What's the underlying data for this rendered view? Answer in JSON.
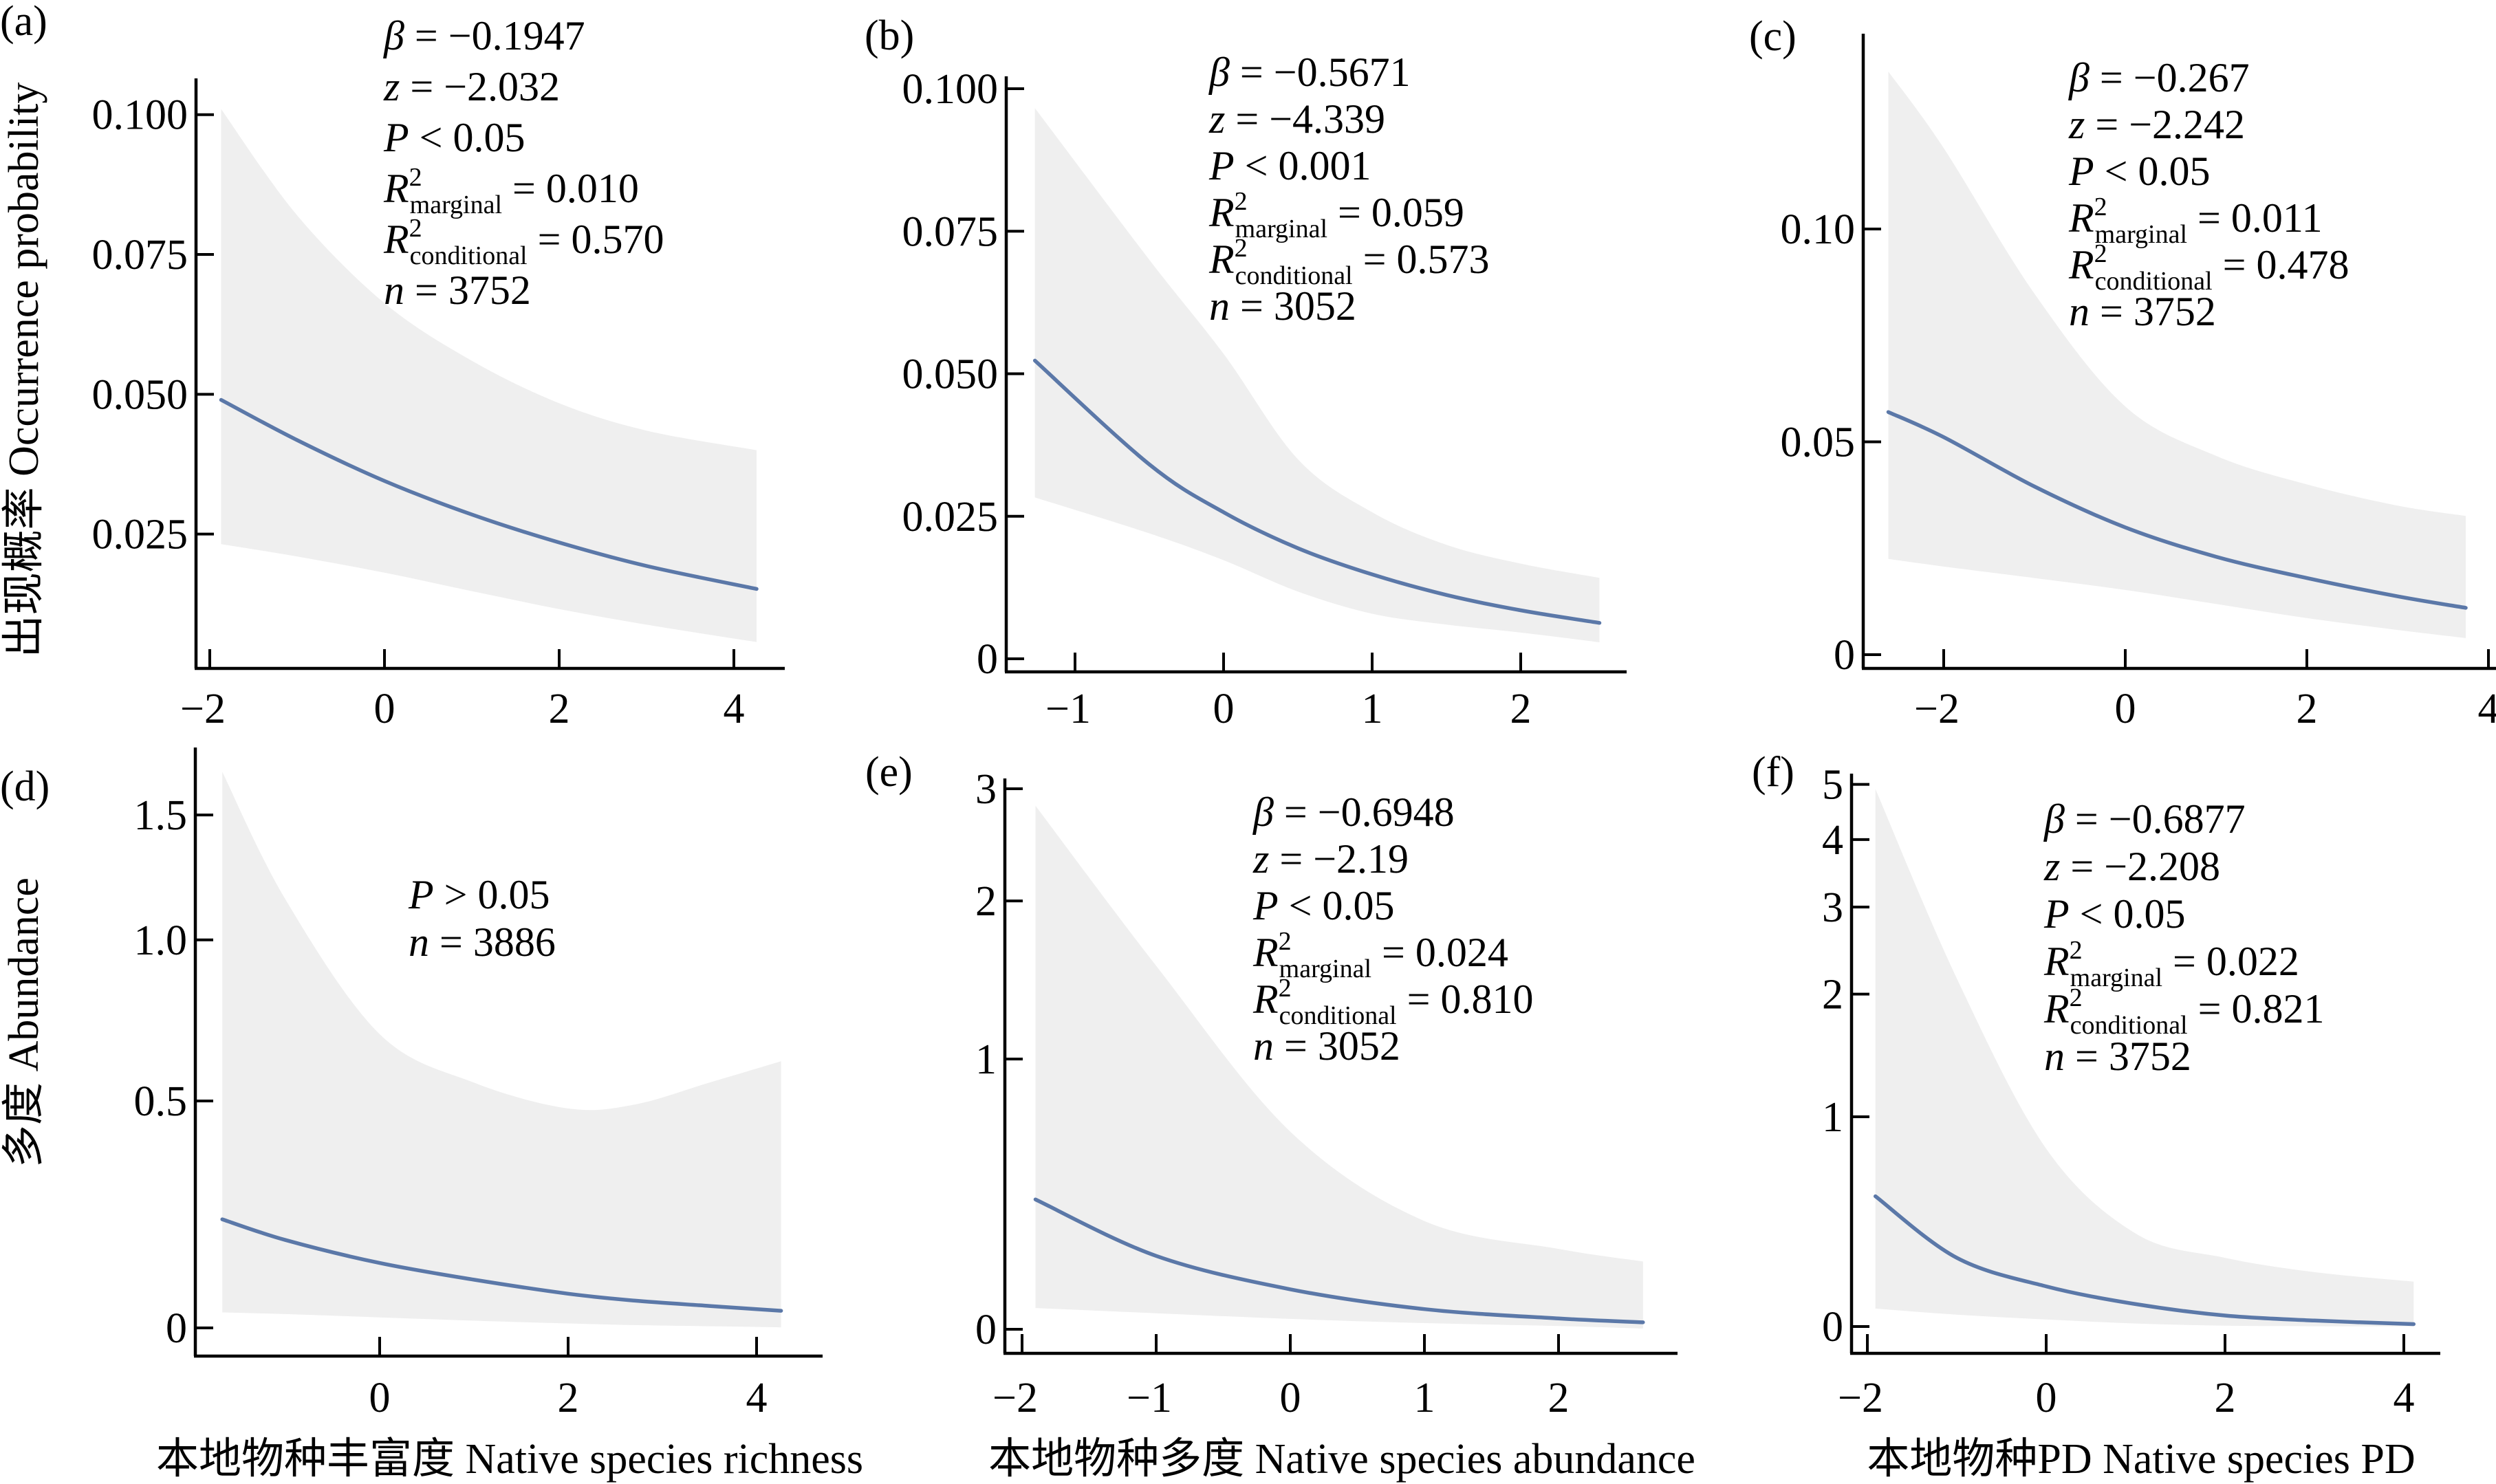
{
  "figure": {
    "colors": {
      "fit_line": "#5b78a8",
      "ci_band": "#efefef",
      "axis": "#000000"
    },
    "row_ylabels": [
      "出现概率 Occurrence probability",
      "多度 Abundance"
    ]
  },
  "chart_data": [
    {
      "id": "a",
      "panel_label": "(a)",
      "type": "line",
      "ylabel": "出现概率 Occurrence probability",
      "xlabel": "",
      "y_scale": "linear",
      "xlim": [
        -2,
        4.5
      ],
      "ylim": [
        0,
        0.105
      ],
      "xticks": [
        -2,
        0,
        2,
        4
      ],
      "xtick_labels": [
        "−2",
        "0",
        "2",
        "4"
      ],
      "yticks": [
        0.025,
        0.05,
        0.075,
        0.1
      ],
      "ytick_labels": [
        "0.025",
        "0.050",
        "0.075",
        "0.100"
      ],
      "stats": [
        {
          "sym": "β",
          "sub": "",
          "sup": "",
          "text": " = −0.1947"
        },
        {
          "sym": "z",
          "sub": "",
          "sup": "",
          "text": " = −2.032"
        },
        {
          "sym": "P",
          "sub": "",
          "sup": "",
          "text": " < 0.05"
        },
        {
          "sym": "R",
          "sup": "2",
          "sub": "marginal",
          "text": " = 0.010"
        },
        {
          "sym": "R",
          "sup": "2",
          "sub": "conditional",
          "text": " = 0.570"
        },
        {
          "sym": "n",
          "sub": "",
          "sup": "",
          "text": " = 3752"
        }
      ],
      "series": [
        {
          "name": "fit",
          "x": [
            -1.87,
            -1.0,
            0.0,
            1.0,
            2.0,
            3.0,
            4.26
          ],
          "fit": [
            0.049,
            0.0418,
            0.0345,
            0.0285,
            0.0235,
            0.0193,
            0.0152
          ],
          "lower": [
            0.0232,
            0.021,
            0.0181,
            0.0148,
            0.0116,
            0.0088,
            0.0057
          ],
          "upper": [
            0.101,
            0.082,
            0.0663,
            0.056,
            0.0484,
            0.0435,
            0.04
          ]
        }
      ]
    },
    {
      "id": "b",
      "panel_label": "(b)",
      "type": "line",
      "ylabel": "",
      "xlabel": "",
      "y_scale": "linear",
      "xlim": [
        -1.4,
        2.7
      ],
      "ylim": [
        0,
        0.1
      ],
      "xticks": [
        -1,
        0,
        1,
        2
      ],
      "xtick_labels": [
        "−1",
        "0",
        "1",
        "2"
      ],
      "yticks": [
        0,
        0.025,
        0.05,
        0.075,
        0.1
      ],
      "ytick_labels": [
        "0",
        "0.025",
        "0.050",
        "0.075",
        "0.100"
      ],
      "stats": [
        {
          "sym": "β",
          "sub": "",
          "sup": "",
          "text": " = −0.5671"
        },
        {
          "sym": "z",
          "sub": "",
          "sup": "",
          "text": " = −4.339"
        },
        {
          "sym": "P",
          "sub": "",
          "sup": "",
          "text": " < 0.001"
        },
        {
          "sym": "R",
          "sup": "2",
          "sub": "marginal",
          "text": " = 0.059"
        },
        {
          "sym": "R",
          "sup": "2",
          "sub": "conditional",
          "text": " = 0.573"
        },
        {
          "sym": "n",
          "sub": "",
          "sup": "",
          "text": " = 3052"
        }
      ],
      "series": [
        {
          "name": "fit",
          "x": [
            -1.27,
            -0.5,
            0.0,
            0.5,
            1.0,
            1.5,
            2.0,
            2.53
          ],
          "fit": [
            0.0523,
            0.0341,
            0.0257,
            0.0194,
            0.0148,
            0.0112,
            0.0085,
            0.0063
          ],
          "lower": [
            0.0283,
            0.022,
            0.0173,
            0.0118,
            0.0079,
            0.006,
            0.0046,
            0.0029
          ],
          "upper": [
            0.0966,
            0.07,
            0.0535,
            0.035,
            0.0257,
            0.02,
            0.0167,
            0.0142
          ]
        }
      ]
    },
    {
      "id": "c",
      "panel_label": "(c)",
      "type": "line",
      "ylabel": "",
      "xlabel": "",
      "y_scale": "linear",
      "xlim": [
        -2.7,
        4.2
      ],
      "ylim": [
        0,
        0.15
      ],
      "xticks": [
        -2,
        0,
        2,
        4
      ],
      "xtick_labels": [
        "−2",
        "0",
        "2",
        "4"
      ],
      "yticks": [
        0,
        0.05,
        0.1
      ],
      "ytick_labels": [
        "0",
        "0.05",
        "0.10"
      ],
      "stats": [
        {
          "sym": "β",
          "sub": "",
          "sup": "",
          "text": " = −0.267"
        },
        {
          "sym": "z",
          "sub": "",
          "sup": "",
          "text": " = −2.242"
        },
        {
          "sym": "P",
          "sub": "",
          "sup": "",
          "text": " < 0.05"
        },
        {
          "sym": "R",
          "sup": "2",
          "sub": "marginal",
          "text": " = 0.011"
        },
        {
          "sym": "R",
          "sup": "2",
          "sub": "conditional",
          "text": " = 0.478"
        },
        {
          "sym": "n",
          "sub": "",
          "sup": "",
          "text": " = 3752"
        }
      ],
      "series": [
        {
          "name": "fit",
          "x": [
            -2.61,
            -2.0,
            -1.0,
            0.0,
            1.0,
            2.0,
            3.0,
            3.75
          ],
          "fit": [
            0.057,
            0.0511,
            0.0395,
            0.0299,
            0.023,
            0.018,
            0.0137,
            0.011
          ],
          "lower": [
            0.0225,
            0.0207,
            0.018,
            0.0152,
            0.0119,
            0.0086,
            0.0058,
            0.0039
          ],
          "upper": [
            0.137,
            0.119,
            0.0848,
            0.0583,
            0.0467,
            0.04,
            0.035,
            0.0326
          ]
        }
      ]
    },
    {
      "id": "d",
      "panel_label": "(d)",
      "type": "line",
      "ylabel": "多度 Abundance",
      "xlabel": "本地物种丰富度 Native species richness",
      "y_scale": "log1p",
      "xlim": [
        -2,
        4.5
      ],
      "ylim": [
        0,
        1.7
      ],
      "xticks": [
        0,
        2,
        4
      ],
      "xtick_labels": [
        "0",
        "2",
        "4"
      ],
      "yticks": [
        0,
        0.5,
        1.0,
        1.5
      ],
      "ytick_labels": [
        "0",
        "0.5",
        "1.0",
        "1.5"
      ],
      "stats": [
        {
          "sym": "P",
          "sub": "",
          "sup": "",
          "text": " > 0.05"
        },
        {
          "sym": "n",
          "sub": "",
          "sup": "",
          "text": " = 3886"
        }
      ],
      "series": [
        {
          "name": "fit",
          "x": [
            -1.67,
            -1.0,
            0.0,
            1.0,
            2.0,
            2.7,
            3.5,
            4.26
          ],
          "fit": [
            0.214,
            0.17,
            0.123,
            0.09,
            0.063,
            0.05,
            0.04,
            0.031
          ],
          "lower": [
            0.028,
            0.025,
            0.019,
            0.013,
            0.008,
            0.005,
            0.003,
            0.001
          ],
          "upper": [
            1.7,
            1.15,
            0.69,
            0.55,
            0.48,
            0.49,
            0.55,
            0.61
          ]
        }
      ]
    },
    {
      "id": "e",
      "panel_label": "(e)",
      "type": "line",
      "ylabel": "",
      "xlabel": "本地物种多度 Native species abundance",
      "y_scale": "log1p",
      "xlim": [
        -2.1,
        2.9
      ],
      "ylim": [
        0,
        3
      ],
      "xticks": [
        -2,
        -1,
        0,
        1,
        2
      ],
      "xtick_labels": [
        "−2",
        "−1",
        "0",
        "1",
        "2"
      ],
      "yticks": [
        0,
        1,
        2,
        3
      ],
      "ytick_labels": [
        "0",
        "1",
        "2",
        "3"
      ],
      "stats": [
        {
          "sym": "β",
          "sub": "",
          "sup": "",
          "text": " = −0.6948"
        },
        {
          "sym": "z",
          "sub": "",
          "sup": "",
          "text": " = −2.19"
        },
        {
          "sym": "P",
          "sub": "",
          "sup": "",
          "text": " < 0.05"
        },
        {
          "sym": "R",
          "sup": "2",
          "sub": "marginal",
          "text": " = 0.024"
        },
        {
          "sym": "R",
          "sup": "2",
          "sub": "conditional",
          "text": " = 0.810"
        },
        {
          "sym": "n",
          "sub": "",
          "sup": "",
          "text": " = 3052"
        }
      ],
      "series": [
        {
          "name": "fit",
          "x": [
            -1.9,
            -1.0,
            0.0,
            1.0,
            2.0,
            2.63
          ],
          "fit": [
            0.395,
            0.207,
            0.108,
            0.053,
            0.028,
            0.018
          ],
          "lower": [
            0.056,
            0.042,
            0.027,
            0.016,
            0.0085,
            0.002
          ],
          "upper": [
            2.83,
            1.54,
            0.66,
            0.32,
            0.229,
            0.19
          ]
        }
      ]
    },
    {
      "id": "f",
      "panel_label": "(f)",
      "type": "line",
      "ylabel": "",
      "xlabel": "本地物种PD Native species PD",
      "y_scale": "log1p",
      "xlim": [
        -2.1,
        4.5
      ],
      "ylim": [
        0,
        5
      ],
      "xticks": [
        -2,
        0,
        2,
        4
      ],
      "xtick_labels": [
        "−2",
        "0",
        "2",
        "4"
      ],
      "yticks": [
        0,
        1,
        2,
        3,
        4,
        5
      ],
      "ytick_labels": [
        "0",
        "1",
        "2",
        "3",
        "4",
        "5"
      ],
      "stats": [
        {
          "sym": "β",
          "sub": "",
          "sup": "",
          "text": " = −0.6877"
        },
        {
          "sym": "z",
          "sub": "",
          "sup": "",
          "text": " = −2.208"
        },
        {
          "sym": "P",
          "sub": "",
          "sup": "",
          "text": " < 0.05"
        },
        {
          "sym": "R",
          "sup": "2",
          "sub": "marginal",
          "text": " = 0.022"
        },
        {
          "sym": "R",
          "sup": "2",
          "sub": "conditional",
          "text": " = 0.821"
        },
        {
          "sym": "n",
          "sub": "",
          "sup": "",
          "text": " = 3752"
        }
      ],
      "series": [
        {
          "name": "fit",
          "x": [
            -1.91,
            -1.0,
            0.0,
            1.0,
            2.0,
            3.0,
            4.11
          ],
          "fit": [
            0.538,
            0.255,
            0.142,
            0.077,
            0.037,
            0.02,
            0.008
          ],
          "lower": [
            0.061,
            0.04,
            0.0235,
            0.01,
            0.003,
            0.001,
            0.0
          ],
          "upper": [
            4.91,
            2.16,
            0.8,
            0.36,
            0.255,
            0.197,
            0.16
          ]
        }
      ]
    }
  ]
}
